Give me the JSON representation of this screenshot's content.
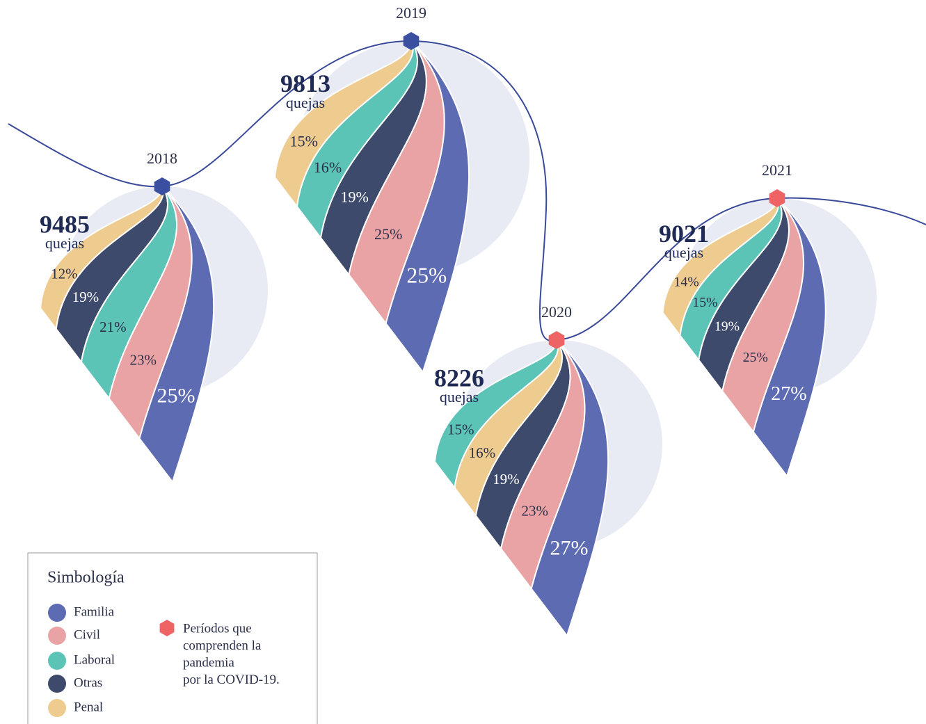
{
  "chart_data": {
    "type": "drop-ribbon",
    "legend_title": "Simbología",
    "series": [
      {
        "name": "Familia",
        "color": "#5d6bb3",
        "label_color": "#ffffff"
      },
      {
        "name": "Civil",
        "color": "#eaa3a4",
        "label_color": "#2a2f4a"
      },
      {
        "name": "Laboral",
        "color": "#5cc3b7",
        "label_color": "#2a2f4a"
      },
      {
        "name": "Otras",
        "color": "#3e4a6b",
        "label_color": "#ffffff"
      },
      {
        "name": "Penal",
        "color": "#eecb8e",
        "label_color": "#2a2f4a"
      }
    ],
    "note": [
      "Períodos que",
      "comprenden la",
      "pandemia",
      "por la COVID-19."
    ],
    "note_color": "#ee6464",
    "years": [
      {
        "label": "2018",
        "total": 9485,
        "unit": "quejas",
        "marker_color": "#3a4fa0",
        "segments": [
          {
            "name": "Penal",
            "value": 12,
            "value_label": "12%"
          },
          {
            "name": "Otras",
            "value": 19,
            "value_label": "19%"
          },
          {
            "name": "Laboral",
            "value": 21,
            "value_label": "21%"
          },
          {
            "name": "Civil",
            "value": 23,
            "value_label": "23%"
          },
          {
            "name": "Familia",
            "value": 25,
            "value_label": "25%"
          }
        ]
      },
      {
        "label": "2019",
        "total": 9813,
        "unit": "quejas",
        "marker_color": "#3a4fa0",
        "segments": [
          {
            "name": "Penal",
            "value": 15,
            "value_label": "15%"
          },
          {
            "name": "Laboral",
            "value": 16,
            "value_label": "16%"
          },
          {
            "name": "Otras",
            "value": 19,
            "value_label": "19%"
          },
          {
            "name": "Civil",
            "value": 25,
            "value_label": "25%"
          },
          {
            "name": "Familia",
            "value": 25,
            "value_label": "25%"
          }
        ]
      },
      {
        "label": "2020",
        "total": 8226,
        "unit": "quejas",
        "marker_color": "#ee6464",
        "segments": [
          {
            "name": "Laboral",
            "value": 15,
            "value_label": "15%"
          },
          {
            "name": "Penal",
            "value": 16,
            "value_label": "16%"
          },
          {
            "name": "Otras",
            "value": 19,
            "value_label": "19%"
          },
          {
            "name": "Civil",
            "value": 23,
            "value_label": "23%"
          },
          {
            "name": "Familia",
            "value": 27,
            "value_label": "27%"
          }
        ]
      },
      {
        "label": "2021",
        "total": 9021,
        "unit": "quejas",
        "marker_color": "#ee6464",
        "segments": [
          {
            "name": "Penal",
            "value": 14,
            "value_label": "14%"
          },
          {
            "name": "Laboral",
            "value": 15,
            "value_label": "15%"
          },
          {
            "name": "Otras",
            "value": 19,
            "value_label": "19%"
          },
          {
            "name": "Civil",
            "value": 25,
            "value_label": "25%"
          },
          {
            "name": "Familia",
            "value": 27,
            "value_label": "27%"
          }
        ]
      }
    ]
  }
}
